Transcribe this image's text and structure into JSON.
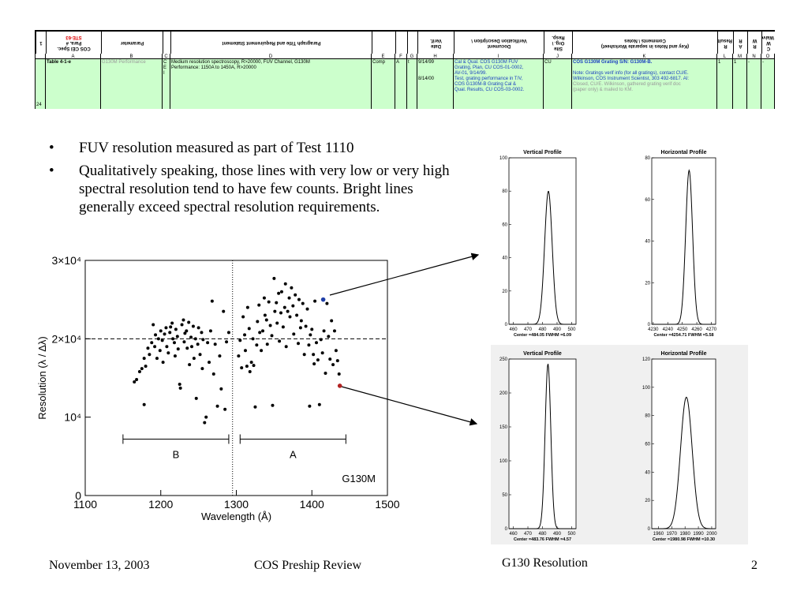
{
  "table": {
    "header": [
      [
        "1"
      ],
      [
        "COS CEI Spec.",
        "Para. #",
        "STE-63"
      ],
      [
        "Parameter"
      ],
      null,
      [
        "Paragraph Title and Requirement Statement"
      ],
      null,
      null,
      null,
      [
        "Date",
        "Verif."
      ],
      [
        "Document",
        "Verification Description \\"
      ],
      [
        "Site",
        "Org. \\",
        "Resp."
      ],
      [
        "(Key and Notes in separate Worksheet)",
        "Comments \\ Notes"
      ],
      [
        "R",
        "Results"
      ],
      [
        "A",
        "R"
      ],
      [
        "R",
        "W"
      ],
      [
        "C",
        "W",
        "Waiver"
      ]
    ],
    "letters": [
      null,
      "A",
      "B",
      "C",
      "D",
      "E",
      "F",
      "G",
      "H",
      "I",
      "J",
      "K",
      "L",
      "M",
      "N",
      "O"
    ],
    "row": [
      [
        "24"
      ],
      [
        "Table 4-1-e"
      ],
      [
        "G130M Performance"
      ],
      [
        "C",
        "E",
        "I"
      ],
      [
        "Medium resolution spectroscopy, R>20000,  FUV Channel, G130M",
        "Performance: 1150A to 1450A, R>20000"
      ],
      [
        "Comp"
      ],
      [
        "A"
      ],
      [
        "t"
      ],
      [
        "9/14/99",
        "",
        "",
        "8/14/00"
      ],
      [
        "Cal & Qual. COS G130M FUV",
        "Grating, Plan, CU COS-01-0002,",
        "AV-01, 9/14/99.",
        "Test, grating performance in T/V,",
        "COS G130M-B Grating Cal &",
        "Qual. Results, CU COS-03-0002."
      ],
      [
        "CU"
      ],
      [
        "COS G130M Grating S/N: G130M-B.",
        "",
        "Note: Gratings verif info (for all gratings), contact CU/E.",
        "Wilkinson, COS Instrument Scientist, 303 492-6817.  AI:",
        "Closed, CU/E. Wilkinson, gathered grating verif doc",
        "(paper only) & mailed to KM."
      ],
      [
        "1"
      ],
      [
        "1"
      ],
      [
        "-"
      ],
      [
        "-"
      ]
    ]
  },
  "bullets": [
    "FUV resolution measured as part of Test 1110",
    "Qualitatively speaking, those lines with very low or very high spectral resolution tend to have few counts.  Bright lines generally exceed spectral resolution requirements."
  ],
  "footer": {
    "date": "November 13, 2003",
    "event": "COS Preship Review",
    "topic": "G130 Resolution",
    "page": "2"
  },
  "chart_data": [
    {
      "type": "scatter",
      "xlabel": "Wavelength (Å)",
      "ylabel": "Resolution (λ / Δλ)",
      "annotation": "G130M",
      "xlim": [
        1100,
        1500
      ],
      "xticks": [
        1100,
        1200,
        1300,
        1400,
        1500
      ],
      "ylim": [
        0,
        30000
      ],
      "yticks": [
        0,
        {
          "value": 10000,
          "label": "10⁴"
        },
        {
          "value": 20000,
          "label": "2×10⁴"
        },
        {
          "value": 30000,
          "label": "3×10⁴"
        }
      ],
      "hline": 20000,
      "vline": 1295,
      "color": "#000000",
      "ranges": [
        {
          "label": "B",
          "from": 1150,
          "to": 1290,
          "y": 7200
        },
        {
          "label": "A",
          "from": 1305,
          "to": 1445,
          "y": 7200
        }
      ],
      "x": [
        1165,
        1168,
        1172,
        1175,
        1178,
        1178,
        1180,
        1183,
        1185,
        1188,
        1190,
        1192,
        1193,
        1195,
        1197,
        1199,
        1200,
        1202,
        1203,
        1205,
        1207,
        1208,
        1210,
        1212,
        1213,
        1215,
        1216,
        1218,
        1219,
        1220,
        1222,
        1223,
        1225,
        1226,
        1228,
        1230,
        1231,
        1232,
        1234,
        1235,
        1237,
        1238,
        1240,
        1241,
        1243,
        1244,
        1246,
        1247,
        1249,
        1250,
        1252,
        1254,
        1255,
        1256,
        1258,
        1260,
        1262,
        1264,
        1266,
        1268,
        1270,
        1272,
        1275,
        1278,
        1280,
        1283,
        1285,
        1287,
        1290,
        1303,
        1305,
        1307,
        1309,
        1311,
        1312,
        1314,
        1315,
        1317,
        1318,
        1320,
        1322,
        1323,
        1325,
        1327,
        1328,
        1330,
        1331,
        1333,
        1335,
        1337,
        1338,
        1340,
        1341,
        1343,
        1345,
        1347,
        1348,
        1350,
        1351,
        1353,
        1354,
        1356,
        1357,
        1359,
        1360,
        1362,
        1364,
        1365,
        1366,
        1368,
        1370,
        1371,
        1373,
        1375,
        1376,
        1378,
        1380,
        1382,
        1383,
        1385,
        1386,
        1388,
        1390,
        1392,
        1394,
        1396,
        1397,
        1398,
        1400,
        1402,
        1403,
        1404,
        1406,
        1408,
        1410,
        1412,
        1414,
        1416,
        1418,
        1420,
        1422,
        1424,
        1426,
        1428,
        1430,
        1432,
        1434,
        1436
      ],
      "y": [
        14500,
        14800,
        15800,
        16200,
        11600,
        17500,
        16500,
        18800,
        18000,
        19500,
        21800,
        19000,
        20500,
        17500,
        20000,
        18500,
        21000,
        19800,
        17000,
        20600,
        21400,
        19000,
        18200,
        20800,
        21500,
        22000,
        20000,
        19500,
        17800,
        21200,
        20300,
        18700,
        14200,
        13700,
        21800,
        22400,
        19600,
        20700,
        21000,
        18800,
        22100,
        16700,
        20200,
        19000,
        21600,
        17500,
        20000,
        12400,
        19300,
        21400,
        18000,
        20800,
        16200,
        19900,
        9300,
        10000,
        19500,
        17000,
        21000,
        24800,
        15500,
        19300,
        11400,
        17800,
        13600,
        23500,
        11000,
        19600,
        20800,
        17800,
        19800,
        16300,
        22800,
        20500,
        18500,
        16500,
        24000,
        21300,
        15800,
        17000,
        20000,
        16600,
        11300,
        19200,
        22200,
        24300,
        20800,
        18500,
        21000,
        25200,
        23000,
        22400,
        19300,
        24700,
        21700,
        20400,
        11500,
        27700,
        23500,
        24600,
        22000,
        25800,
        19700,
        23300,
        26000,
        21500,
        24000,
        27000,
        19000,
        23500,
        25200,
        22800,
        26500,
        24200,
        20600,
        25600,
        23000,
        19400,
        25000,
        21400,
        22300,
        24500,
        18000,
        21600,
        23800,
        19200,
        11400,
        20500,
        21200,
        18000,
        16800,
        24800,
        19500,
        17300,
        11600,
        19900,
        18200,
        21000,
        15600,
        24500,
        20300,
        17400,
        22300,
        16700,
        21000,
        18500,
        17200,
        15500
      ],
      "highlights": [
        {
          "x": 1415,
          "y": 25000,
          "color": "#1f3fa8"
        },
        {
          "x": 1437,
          "y": 14000,
          "color": "#b22222"
        }
      ]
    },
    {
      "type": "profile",
      "title": "Vertical Profile",
      "annotation": "Center =484.05  FWHM =6.09",
      "center": 484.05,
      "fwhm": 6.09,
      "peak": 80,
      "xlim": [
        457,
        503
      ],
      "xticks": [
        460,
        470,
        480,
        490,
        500
      ],
      "ylim": [
        0,
        100
      ],
      "yticks": [
        0,
        20,
        40,
        60,
        80,
        100
      ]
    },
    {
      "type": "profile",
      "title": "Horizontal Profile",
      "annotation": "Center =4254.71  FWHM =5.58",
      "center": 4254.71,
      "fwhm": 5.58,
      "peak": 74,
      "xlim": [
        4229,
        4273
      ],
      "xticks": [
        4230,
        4240,
        4250,
        4260,
        4270
      ],
      "ylim": [
        0,
        80
      ],
      "yticks": [
        0,
        20,
        40,
        60,
        80
      ]
    },
    {
      "type": "profile",
      "title": "Vertical Profile",
      "annotation": "Center =483.76  FWHM =4.57",
      "center": 483.76,
      "fwhm": 4.57,
      "peak": 243,
      "xlim": [
        457,
        503
      ],
      "xticks": [
        460,
        470,
        480,
        490,
        500
      ],
      "ylim": [
        0,
        250
      ],
      "yticks": [
        0,
        50,
        100,
        150,
        200,
        250
      ]
    },
    {
      "type": "profile",
      "title": "Horizontal Profile",
      "annotation": "Center =1980.98  FWHM =10.30",
      "center": 1980.98,
      "fwhm": 10.3,
      "peak": 93,
      "xlim": [
        1955,
        2003
      ],
      "xticks": [
        1960,
        1970,
        1980,
        1990,
        2000
      ],
      "ylim": [
        0,
        120
      ],
      "yticks": [
        0,
        20,
        40,
        60,
        80,
        100,
        120
      ]
    }
  ]
}
